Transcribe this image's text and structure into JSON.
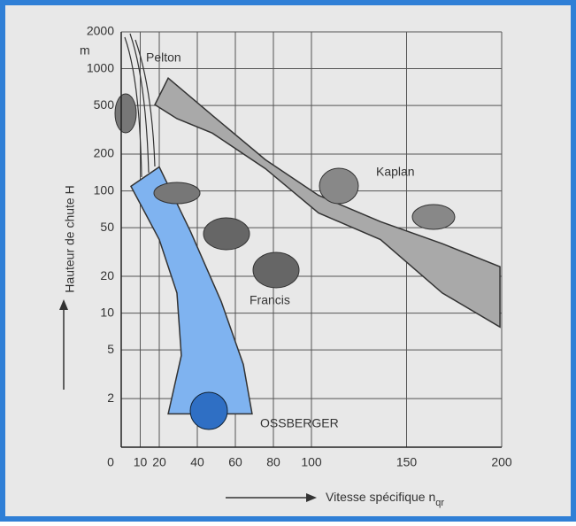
{
  "chart_data": {
    "type": "area-regions",
    "y_label": "Hauteur de chute H",
    "y_unit": "m",
    "x_label": "Vitesse spécifique n",
    "x_label_sub": "qr",
    "xlim": [
      0,
      200
    ],
    "xticks": [
      0,
      10,
      20,
      40,
      60,
      80,
      100,
      150,
      200
    ],
    "ylim": [
      0.8,
      2000
    ],
    "yticks": [
      2,
      5,
      10,
      20,
      50,
      100,
      200,
      500,
      1000,
      2000
    ],
    "log_y": true,
    "grid": true,
    "regions": [
      {
        "name": "Kaplan",
        "color": "#a9a9a9",
        "x": [
          17.7,
          24.7,
          47.9,
          75.8,
          103.7,
          136.3,
          168.8,
          199.1,
          199.1,
          168.8,
          136.3,
          103.7,
          75.8,
          47.9,
          29.3,
          17.7
        ],
        "y": [
          507,
          838,
          415,
          180,
          92,
          56,
          37,
          24,
          7.7,
          14.6,
          40,
          66,
          152,
          297,
          390,
          507
        ]
      },
      {
        "name": "OSSBERGER",
        "color": "#7fb3f0",
        "x": [
          5.1,
          20,
          36.3,
          52.6,
          64.2,
          68.8,
          24.7,
          31.6,
          29.3,
          20
        ],
        "y": [
          109,
          157,
          47,
          12.4,
          3.8,
          1.5,
          1.5,
          4.5,
          14.6,
          40
        ]
      }
    ],
    "labels": {
      "pelton": "Pelton",
      "kaplan": "Kaplan",
      "francis": "Francis"
    }
  }
}
